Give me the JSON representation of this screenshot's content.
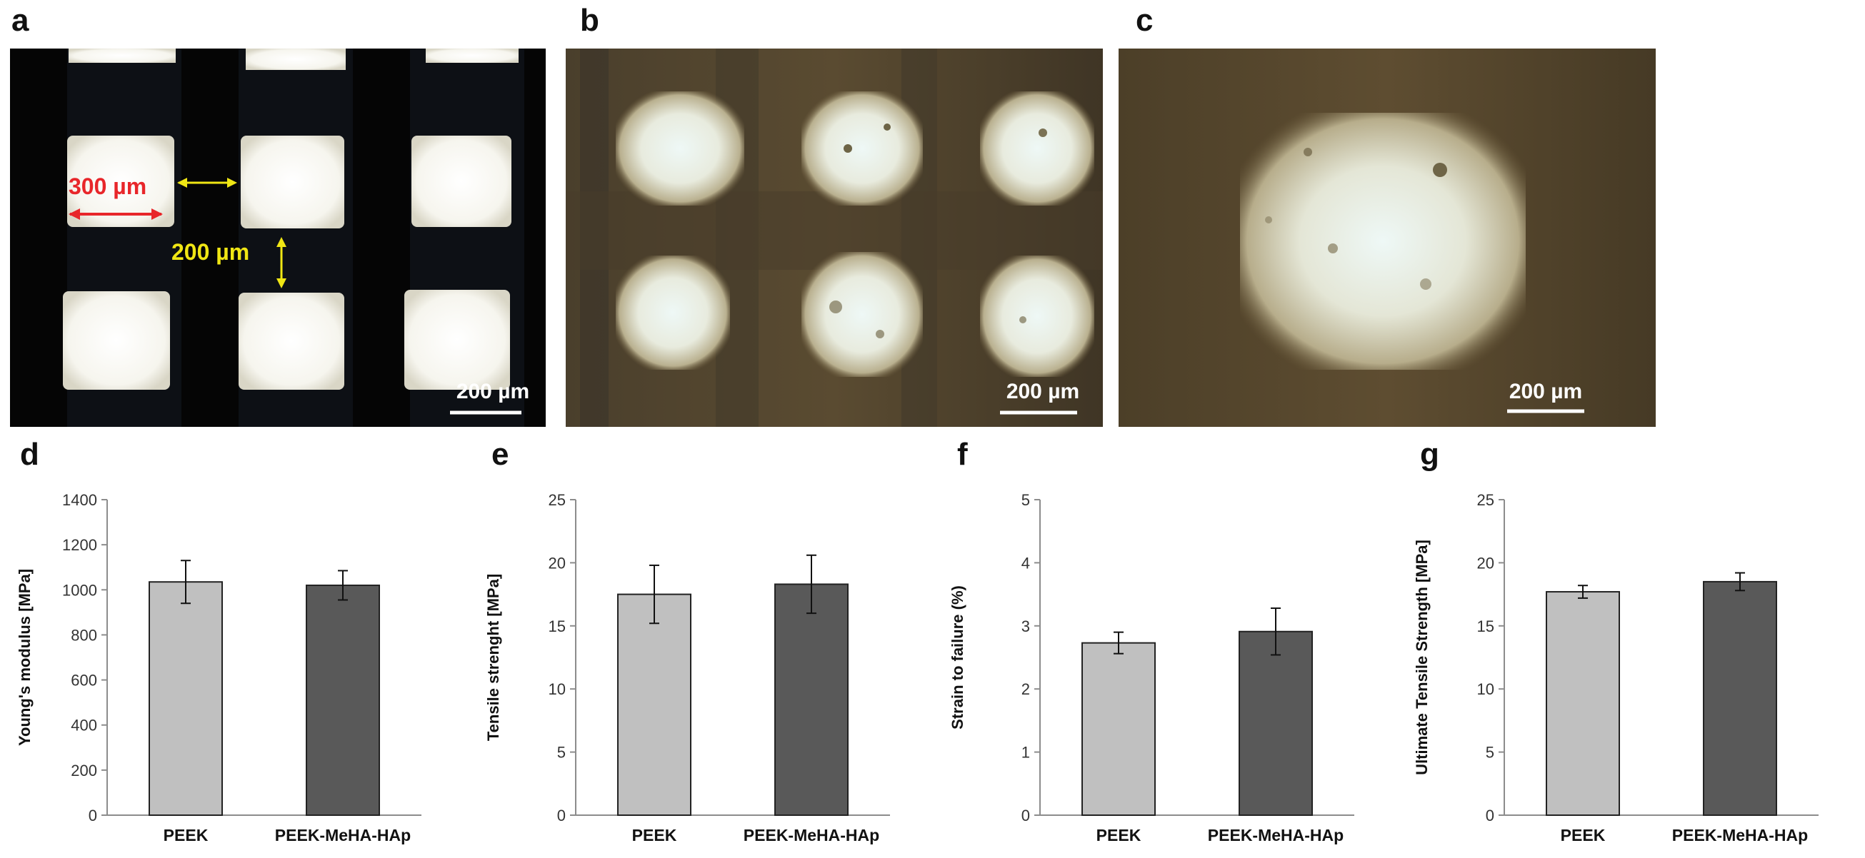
{
  "panels": {
    "a": "a",
    "b": "b",
    "c": "c",
    "d": "d",
    "e": "e",
    "f": "f",
    "g": "g"
  },
  "micrographs": {
    "a": {
      "scale_bar": "200 µm",
      "pore_label": "300 µm",
      "strut_label": "200 µm",
      "pore_label_color": "#e8262a",
      "strut_label_color": "#f0e614"
    },
    "b": {
      "scale_bar": "200 µm"
    },
    "c": {
      "scale_bar": "200 µm"
    }
  },
  "colors": {
    "PEEK": "#c0c0c0",
    "PEEK-MeHA-HAp": "#595959"
  },
  "chart_data": [
    {
      "type": "bar",
      "ylabel": "Young's modulus [MPa]",
      "categories": [
        "PEEK",
        "PEEK-MeHA-HAp"
      ],
      "values": [
        1035,
        1020
      ],
      "errors": [
        95,
        65
      ],
      "ylim": [
        0,
        1400
      ],
      "yticks": [
        "0",
        "200",
        "400",
        "600",
        "800",
        "1000",
        "1200",
        "1400"
      ]
    },
    {
      "type": "bar",
      "ylabel": "Tensile strenght [MPa]",
      "categories": [
        "PEEK",
        "PEEK-MeHA-HAp"
      ],
      "values": [
        17.5,
        18.3
      ],
      "errors": [
        2.3,
        2.3
      ],
      "ylim": [
        0,
        25
      ],
      "yticks": [
        "0",
        "5",
        "10",
        "15",
        "20",
        "25"
      ]
    },
    {
      "type": "bar",
      "ylabel": "Strain to failure (%)",
      "categories": [
        "PEEK",
        "PEEK-MeHA-HAp"
      ],
      "values": [
        2.73,
        2.91
      ],
      "errors": [
        0.17,
        0.37
      ],
      "ylim": [
        0,
        5
      ],
      "yticks": [
        "0",
        "1",
        "2",
        "3",
        "4",
        "5"
      ]
    },
    {
      "type": "bar",
      "ylabel": "Ultimate Tensile Strength [MPa]",
      "categories": [
        "PEEK",
        "PEEK-MeHA-HAp"
      ],
      "values": [
        17.7,
        18.5
      ],
      "errors": [
        0.5,
        0.7
      ],
      "ylim": [
        0,
        25
      ],
      "yticks": [
        "0",
        "5",
        "10",
        "15",
        "20",
        "25"
      ]
    }
  ]
}
